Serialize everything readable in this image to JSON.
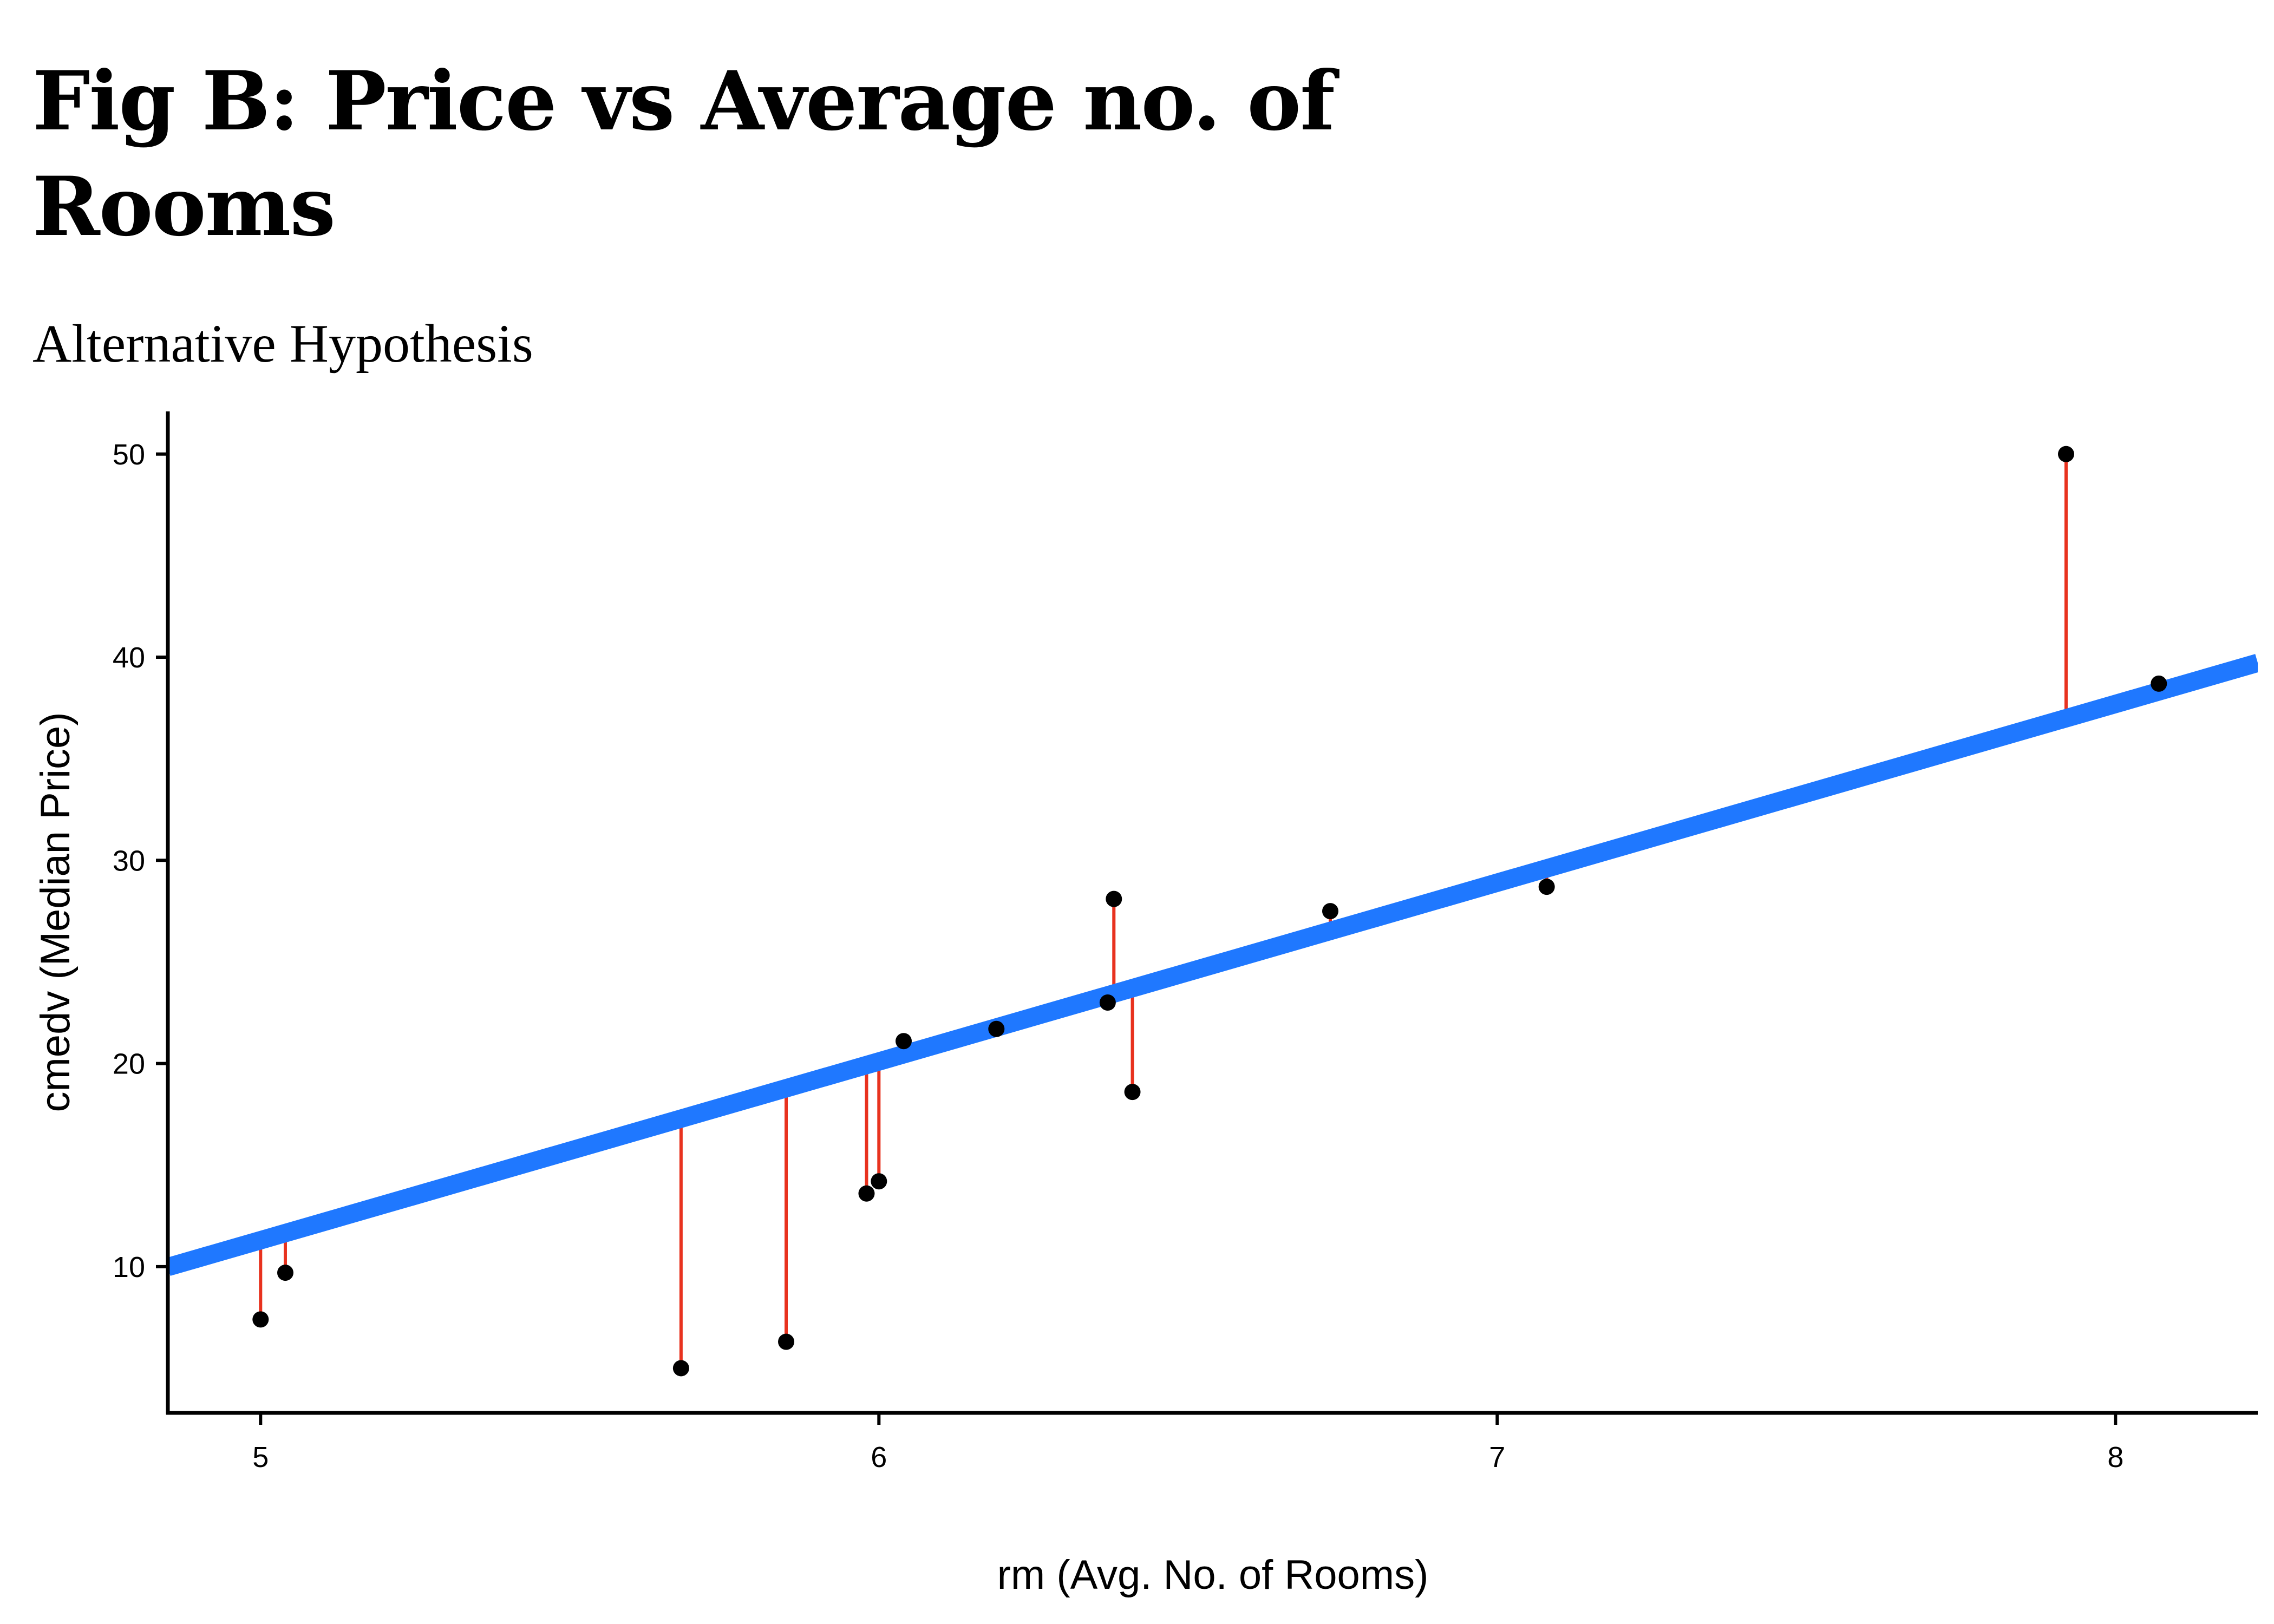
{
  "chart_data": {
    "type": "scatter",
    "title": "Fig B: Price vs Average no. of Rooms",
    "subtitle": "Alternative Hypothesis",
    "xlabel": "rm (Avg. No. of Rooms)",
    "ylabel": "cmedv (Median Price)",
    "xlim": [
      4.85,
      8.23
    ],
    "ylim": [
      2.8,
      52.1
    ],
    "xticks": [
      5,
      6,
      7,
      8
    ],
    "yticks": [
      10,
      20,
      30,
      40,
      50
    ],
    "grid": false,
    "legend": "none",
    "points": [
      {
        "x": 5.0,
        "y": 7.4
      },
      {
        "x": 5.04,
        "y": 9.7
      },
      {
        "x": 5.68,
        "y": 5.0
      },
      {
        "x": 5.85,
        "y": 6.3
      },
      {
        "x": 5.98,
        "y": 13.6
      },
      {
        "x": 6.0,
        "y": 14.2
      },
      {
        "x": 6.04,
        "y": 21.1
      },
      {
        "x": 6.19,
        "y": 21.7
      },
      {
        "x": 6.37,
        "y": 23.0
      },
      {
        "x": 6.38,
        "y": 28.1
      },
      {
        "x": 6.41,
        "y": 18.6
      },
      {
        "x": 6.73,
        "y": 27.5
      },
      {
        "x": 7.08,
        "y": 28.7
      },
      {
        "x": 7.92,
        "y": 50.0
      },
      {
        "x": 8.07,
        "y": 38.7
      }
    ],
    "fit_line": {
      "intercept": -32.7,
      "slope": 8.8
    },
    "colors": {
      "points": "#000000",
      "fit_line": "#1f78ff",
      "residuals": "#e8321e",
      "axis": "#000000"
    }
  }
}
